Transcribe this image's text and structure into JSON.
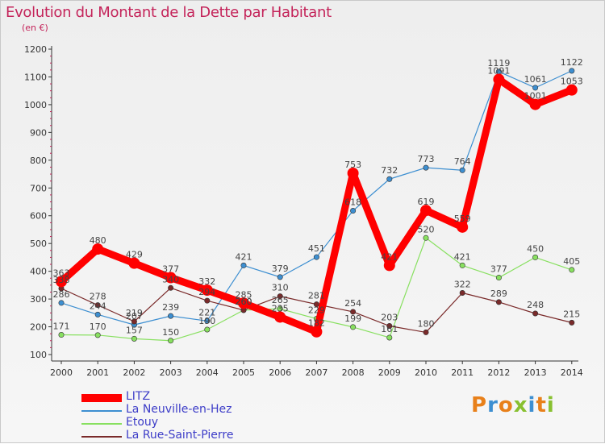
{
  "title": "Evolution du Montant de la Dette par Habitant",
  "subtitle": "(en €)",
  "logo_text": "Proxiti",
  "chart_data": {
    "type": "line",
    "title": "Evolution du Montant de la Dette par Habitant",
    "subtitle": "(en €)",
    "xlabel": "",
    "ylabel": "",
    "categories": [
      "2000",
      "2001",
      "2002",
      "2003",
      "2004",
      "2005",
      "2006",
      "2007",
      "2008",
      "2009",
      "2010",
      "2011",
      "2012",
      "2013",
      "2014"
    ],
    "ylim": [
      100,
      1200
    ],
    "yticks": [
      100,
      200,
      300,
      400,
      500,
      600,
      700,
      800,
      900,
      1000,
      1100,
      1200
    ],
    "grid": false,
    "legend_position": "bottom-left",
    "series": [
      {
        "name": "LITZ",
        "color": "#ff0000",
        "values": [
          363,
          480,
          429,
          377,
          332,
          285,
          235,
          182,
          753,
          421,
          619,
          559,
          1091,
          1001,
          1053
        ]
      },
      {
        "name": "La Neuville-en-Hez",
        "color": "#3d8fd1",
        "values": [
          286,
          244,
          207,
          239,
          221,
          421,
          379,
          451,
          618,
          732,
          773,
          764,
          1119,
          1061,
          1122
        ]
      },
      {
        "name": "Etouy",
        "color": "#88e060",
        "values": [
          171,
          170,
          157,
          150,
          190,
          260,
          265,
          229,
          199,
          161,
          520,
          421,
          377,
          450,
          405
        ]
      },
      {
        "name": "La Rue-Saint-Pierre",
        "color": "#7a2a2a",
        "values": [
          338,
          278,
          219,
          340,
          294,
          260,
          310,
          281,
          254,
          203,
          180,
          322,
          289,
          248,
          215
        ]
      }
    ]
  }
}
